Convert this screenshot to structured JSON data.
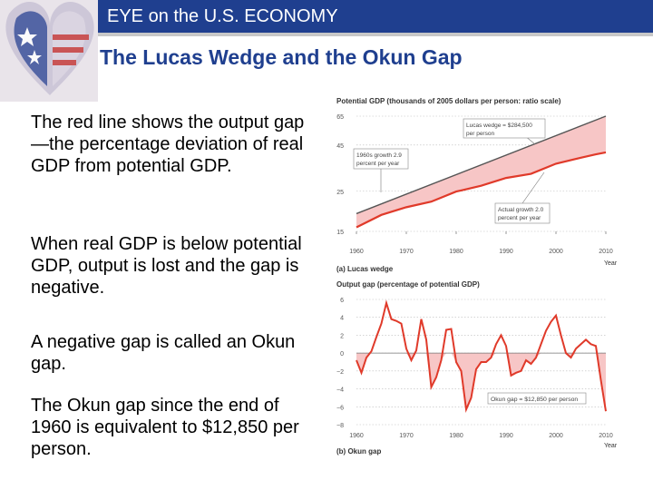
{
  "header": {
    "text": "EYE on the U.S. ECONOMY"
  },
  "title": "The Lucas Wedge and the Okun Gap",
  "paragraphs": [
    "The red line shows the output gap—the percentage deviation of real GDP from potential GDP.",
    "When real GDP is below potential GDP, output is lost and the gap is negative.",
    "A negative gap is called an Okun gap.",
    "The Okun gap since the end of 1960 is equivalent to $12,850 per person."
  ],
  "colors": {
    "header_blue": "#1f3f8f",
    "line_red": "#e03a2a",
    "fill_pink": "#f7c6c6",
    "potential_gray": "#555555"
  },
  "chart_data": [
    {
      "type": "line",
      "title": "Potential GDP (thousands of 2005 dollars per person: ratio scale)",
      "caption": "(a) Lucas wedge",
      "xlabel": "Year",
      "x_ticks": [
        "1960",
        "1970",
        "1980",
        "1990",
        "2000",
        "2010"
      ],
      "y_ticks": [
        "15",
        "25",
        "45",
        "65"
      ],
      "scale": "log",
      "xlim": [
        1960,
        2010
      ],
      "ylim": [
        15,
        65
      ],
      "series": [
        {
          "role": "potential",
          "x": [
            1960,
            2010
          ],
          "y": [
            18.8,
            65
          ]
        },
        {
          "role": "actual",
          "x": [
            1960,
            1965,
            1970,
            1975,
            1980,
            1985,
            1990,
            1995,
            2000,
            2005,
            2008,
            2010
          ],
          "y": [
            15.8,
            18.5,
            20.4,
            21.9,
            24.9,
            26.8,
            29.6,
            31.2,
            35.5,
            38.3,
            40.0,
            41.0
          ]
        }
      ],
      "annotations": [
        {
          "text": [
            "Lucas wedge = $284,500",
            "per person"
          ]
        },
        {
          "text": [
            "1960s growth 2.9",
            "percent per year"
          ]
        },
        {
          "text": [
            "Actual growth 2.0",
            "percent per year"
          ]
        }
      ]
    },
    {
      "type": "area",
      "title": "Output gap (percentage of potential GDP)",
      "caption": "(b) Okun gap",
      "xlabel": "Year",
      "x_ticks": [
        "1960",
        "1970",
        "1980",
        "1990",
        "2000",
        "2010"
      ],
      "y_ticks": [
        "6",
        "4",
        "2",
        "0",
        "−2",
        "−4",
        "−6",
        "−8"
      ],
      "xlim": [
        1960,
        2010
      ],
      "ylim": [
        -8,
        6
      ],
      "x": [
        1960,
        1961,
        1962,
        1963,
        1964,
        1965,
        1966,
        1967,
        1968,
        1969,
        1970,
        1971,
        1972,
        1973,
        1974,
        1975,
        1976,
        1977,
        1978,
        1979,
        1980,
        1981,
        1982,
        1983,
        1984,
        1985,
        1986,
        1987,
        1988,
        1989,
        1990,
        1991,
        1992,
        1993,
        1994,
        1995,
        1996,
        1997,
        1998,
        1999,
        2000,
        2001,
        2002,
        2003,
        2004,
        2005,
        2006,
        2007,
        2008,
        2009,
        2010
      ],
      "values": [
        -0.8,
        -2.2,
        -0.5,
        0.2,
        1.8,
        3.3,
        5.6,
        3.8,
        3.6,
        3.3,
        0.5,
        -0.8,
        0.3,
        3.8,
        1.5,
        -3.8,
        -2.7,
        -0.8,
        2.6,
        2.7,
        -1.0,
        -2.0,
        -6.3,
        -5.0,
        -1.8,
        -1.0,
        -1.0,
        -0.5,
        1.0,
        2.0,
        0.8,
        -2.5,
        -2.2,
        -2.0,
        -0.8,
        -1.2,
        -0.5,
        1.0,
        2.5,
        3.5,
        4.2,
        2.0,
        0.0,
        -0.5,
        0.5,
        1.0,
        1.5,
        1.0,
        0.8,
        -3.0,
        -6.5
      ],
      "annotations": [
        {
          "text": "Okun gap = $12,850 per person"
        }
      ]
    }
  ]
}
